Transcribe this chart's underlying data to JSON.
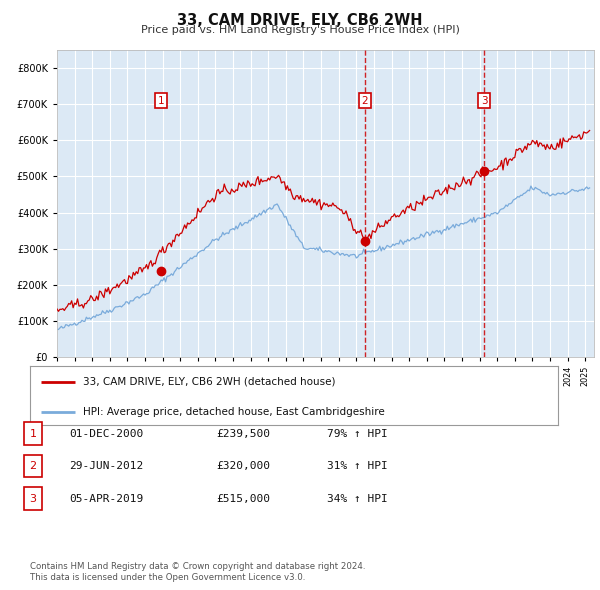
{
  "title": "33, CAM DRIVE, ELY, CB6 2WH",
  "subtitle": "Price paid vs. HM Land Registry's House Price Index (HPI)",
  "legend_line1": "33, CAM DRIVE, ELY, CB6 2WH (detached house)",
  "legend_line2": "HPI: Average price, detached house, East Cambridgeshire",
  "table_rows": [
    {
      "num": "1",
      "date": "01-DEC-2000",
      "price": "£239,500",
      "change": "79% ↑ HPI"
    },
    {
      "num": "2",
      "date": "29-JUN-2012",
      "price": "£320,000",
      "change": "31% ↑ HPI"
    },
    {
      "num": "3",
      "date": "05-APR-2019",
      "price": "£515,000",
      "change": "34% ↑ HPI"
    }
  ],
  "footer1": "Contains HM Land Registry data © Crown copyright and database right 2024.",
  "footer2": "This data is licensed under the Open Government Licence v3.0.",
  "sale_dates_decimal": [
    2000.917,
    2012.496,
    2019.258
  ],
  "sale_prices": [
    239500,
    320000,
    515000
  ],
  "vline_dates": [
    2012.496,
    2019.258
  ],
  "hpi_color": "#7aabdb",
  "price_color": "#cc0000",
  "bg_color": "#dce9f5",
  "grid_color": "#ffffff",
  "ylim": [
    0,
    850000
  ],
  "xlim_start": 1995.0,
  "xlim_end": 2025.5,
  "fig_bg": "#ffffff"
}
